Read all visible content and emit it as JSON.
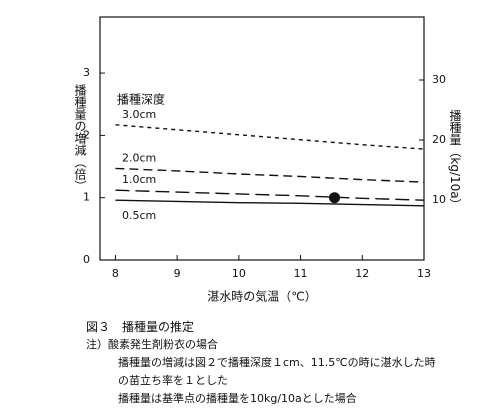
{
  "chart_data": {
    "type": "line",
    "x_label": "湛水時の気温（℃）",
    "y_label": "播種量の増減（倍）",
    "y2_label": "播種量（kg/10a）",
    "legend_title": "播種深度",
    "x": [
      8,
      9,
      10,
      11,
      12,
      13
    ],
    "series": [
      {
        "name": "3.0cm",
        "color": "#111111",
        "dash": "4,4",
        "values": [
          2.17,
          2.09,
          2.01,
          1.93,
          1.85,
          1.78
        ]
      },
      {
        "name": "2.0cm",
        "color": "#111111",
        "dash": "9,5",
        "values": [
          1.47,
          1.43,
          1.38,
          1.34,
          1.29,
          1.25
        ]
      },
      {
        "name": "1.0cm",
        "color": "#111111",
        "dash": "14,6",
        "values": [
          1.12,
          1.09,
          1.06,
          1.03,
          0.99,
          0.96
        ]
      },
      {
        "name": "0.5cm",
        "color": "#111111",
        "dash": "none",
        "values": [
          0.96,
          0.94,
          0.92,
          0.91,
          0.89,
          0.87
        ]
      }
    ],
    "points": [
      {
        "x": 11.55,
        "y": 1.0
      }
    ],
    "xlim": [
      7.75,
      13
    ],
    "xticks": [
      8,
      9,
      10,
      11,
      12,
      13
    ],
    "ylim": [
      0,
      3.9
    ],
    "yticks": [
      0,
      1,
      2,
      3
    ],
    "y2lim": [
      0,
      40.5
    ],
    "y2ticks": [
      10,
      20,
      30
    ]
  },
  "caption": {
    "title": "図３　播種量の推定",
    "notes": [
      "注）酸素発生剤粉衣の場合",
      "播種量の増減は図２で播種深度１cm、11.5℃の時に湛水した時",
      "の苗立ち率を１とした",
      "播種量は基準点の播種量を10kg/10aとした場合"
    ]
  }
}
